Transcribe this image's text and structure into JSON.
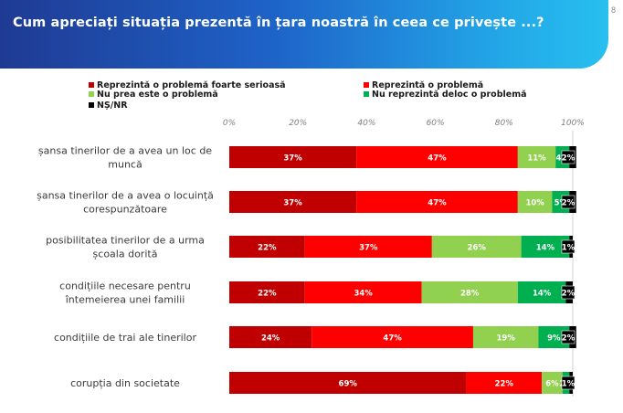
{
  "header": {
    "title": "Cum apreciați situația prezentă în țara noastră în ceea ce privește ...?",
    "page_number": "8"
  },
  "colors": {
    "header_start": "#1f3a93",
    "header_end": "#27c0ef",
    "foarte_serioasa": "#c00000",
    "problema": "#ff0000",
    "nu_prea": "#92d050",
    "nu_deloc": "#00b050",
    "ns_nr": "#000000"
  },
  "chart_data": {
    "type": "bar",
    "orientation": "horizontal",
    "stacked": true,
    "xlim": [
      0,
      100
    ],
    "x_ticks": [
      "0%",
      "20%",
      "40%",
      "60%",
      "80%",
      "100%"
    ],
    "legend_position": "top-left",
    "categories": [
      [
        "șansa tinerilor de a avea un loc de",
        "muncă"
      ],
      [
        "șansa tinerilor de a avea o locuință",
        "corespunzătoare"
      ],
      [
        "posibilitatea tinerilor de a urma",
        "școala dorită"
      ],
      [
        "condițiile necesare pentru",
        "întemeierea unei familii"
      ],
      [
        "condițiile de trai ale tinerilor"
      ],
      [
        "corupția din societate"
      ]
    ],
    "series": [
      {
        "name": "Reprezintă o problemă foarte serioasă",
        "color": "#c00000",
        "values": [
          37,
          37,
          22,
          22,
          24,
          69
        ]
      },
      {
        "name": "Reprezintă o problemă",
        "color": "#ff0000",
        "values": [
          47,
          47,
          37,
          34,
          47,
          22
        ]
      },
      {
        "name": "Nu prea este o problemă",
        "color": "#92d050",
        "values": [
          11,
          10,
          26,
          28,
          19,
          6
        ]
      },
      {
        "name": "Nu reprezintă deloc o problemă",
        "color": "#00b050",
        "values": [
          4,
          5,
          14,
          14,
          9,
          2
        ]
      },
      {
        "name": "NȘ/NR",
        "color": "#000000",
        "values": [
          2,
          2,
          1,
          2,
          2,
          1
        ]
      }
    ]
  }
}
